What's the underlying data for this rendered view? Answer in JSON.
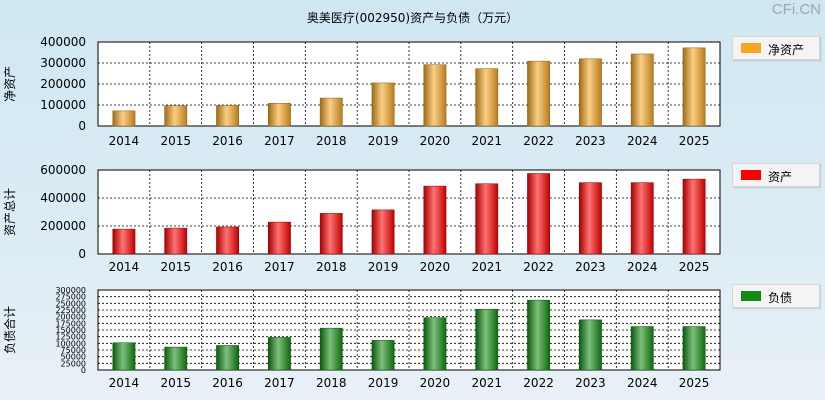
{
  "title": "奥美医疗(002950)资产与负债（万元）",
  "watermark": "CFi.CN",
  "chart_data": [
    {
      "type": "bar",
      "ylabel": "净资产",
      "legend": "净资产",
      "color": "#f5a623",
      "ylim": [
        0,
        400000
      ],
      "yticks": [
        0,
        100000,
        200000,
        300000,
        400000
      ],
      "categories": [
        "2014",
        "2015",
        "2016",
        "2017",
        "2018",
        "2019",
        "2020",
        "2021",
        "2022",
        "2023",
        "2024",
        "2025"
      ],
      "values": [
        72000,
        97000,
        98000,
        108000,
        133000,
        205000,
        292000,
        273000,
        309000,
        320000,
        343000,
        372000
      ]
    },
    {
      "type": "bar",
      "ylabel": "资产总计",
      "legend": "资产",
      "color": "#ff0000",
      "ylim": [
        0,
        600000
      ],
      "yticks": [
        0,
        200000,
        400000,
        600000
      ],
      "categories": [
        "2014",
        "2015",
        "2016",
        "2017",
        "2018",
        "2019",
        "2020",
        "2021",
        "2022",
        "2023",
        "2024",
        "2025"
      ],
      "values": [
        178000,
        185000,
        193000,
        228000,
        290000,
        315000,
        485000,
        502000,
        575000,
        510000,
        510000,
        535000
      ]
    },
    {
      "type": "bar",
      "ylabel": "负债合计",
      "legend": "负债",
      "color": "#138a13",
      "ylim": [
        0,
        300000
      ],
      "yticks": [
        0,
        25000,
        50000,
        75000,
        100000,
        125000,
        150000,
        175000,
        200000,
        225000,
        250000,
        275000,
        300000
      ],
      "categories": [
        "2014",
        "2015",
        "2016",
        "2017",
        "2018",
        "2019",
        "2020",
        "2021",
        "2022",
        "2023",
        "2024",
        "2025"
      ],
      "values": [
        102000,
        86000,
        92000,
        122000,
        157000,
        111000,
        196000,
        228000,
        262000,
        188000,
        163000,
        163000
      ]
    }
  ]
}
